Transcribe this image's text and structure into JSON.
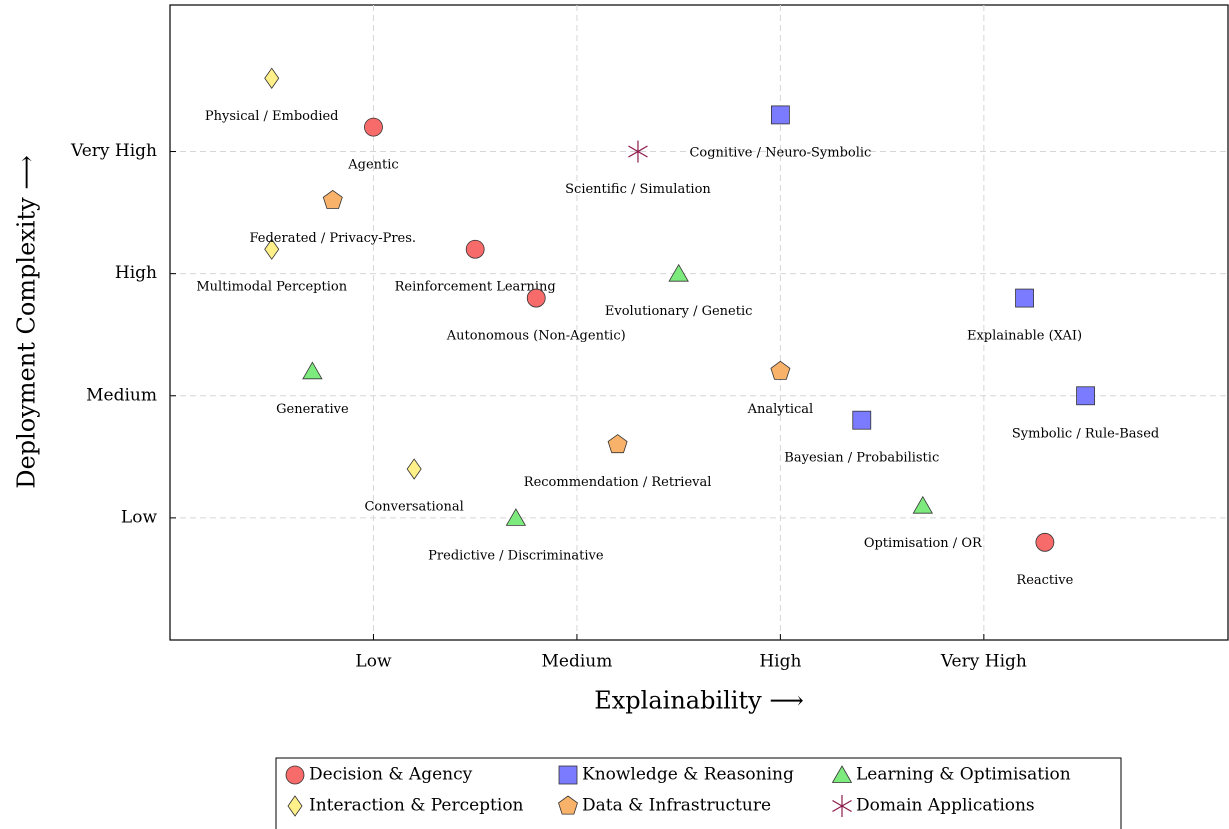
{
  "chart_data": {
    "type": "scatter",
    "x_label": "Explainability ⟶",
    "y_label": "Deployment Complexity ⟶",
    "xlim": [
      0,
      5.2
    ],
    "ylim": [
      0,
      5.2
    ],
    "xticks": [
      {
        "value": 1,
        "label": "Low"
      },
      {
        "value": 2,
        "label": "Medium"
      },
      {
        "value": 3,
        "label": "High"
      },
      {
        "value": 4,
        "label": "Very High"
      }
    ],
    "yticks": [
      {
        "value": 1,
        "label": "Low"
      },
      {
        "value": 2,
        "label": "Medium"
      },
      {
        "value": 3,
        "label": "High"
      },
      {
        "value": 4,
        "label": "Very High"
      }
    ],
    "grid": true,
    "legend": "bottom",
    "series": [
      {
        "name": "Decision & Agency",
        "color": "#f76b6b",
        "marker": "circle",
        "x": [
          1.0,
          1.5,
          1.8,
          4.3
        ],
        "y": [
          4.2,
          3.2,
          2.8,
          0.8
        ],
        "labels": [
          "Agentic",
          "Reinforcement Learning",
          "Autonomous (Non-Agentic)",
          "Reactive"
        ]
      },
      {
        "name": "Knowledge & Reasoning",
        "color": "#7b7bff",
        "marker": "square",
        "x": [
          3.0,
          4.2,
          4.5,
          3.4
        ],
        "y": [
          4.3,
          2.8,
          2.0,
          1.8
        ],
        "labels": [
          "Cognitive / Neuro-Symbolic",
          "Explainable (XAI)",
          "Symbolic / Rule-Based",
          "Bayesian / Probabilistic"
        ]
      },
      {
        "name": "Learning & Optimisation",
        "color": "#7dea7d",
        "marker": "triangle",
        "x": [
          2.5,
          0.7,
          1.7,
          3.7
        ],
        "y": [
          3.0,
          2.2,
          1.0,
          1.1
        ],
        "labels": [
          "Evolutionary / Genetic",
          "Generative",
          "Predictive / Discriminative",
          "Optimisation / OR"
        ]
      },
      {
        "name": "Interaction & Perception",
        "color": "#fff08a",
        "marker": "diamond",
        "x": [
          0.5,
          0.5,
          1.2
        ],
        "y": [
          4.6,
          3.2,
          1.4
        ],
        "labels": [
          "Physical / Embodied",
          "Multimodal Perception",
          "Conversational"
        ]
      },
      {
        "name": "Data & Infrastructure",
        "color": "#f9b26a",
        "marker": "pentagon",
        "x": [
          0.8,
          3.0,
          2.2
        ],
        "y": [
          3.6,
          2.2,
          1.6
        ],
        "labels": [
          "Federated / Privacy-Pres.",
          "Analytical",
          "Recommendation / Retrieval"
        ]
      },
      {
        "name": "Domain Applications",
        "color": "#8b1a4a",
        "marker": "star",
        "x": [
          2.3
        ],
        "y": [
          4.0
        ],
        "labels": [
          "Scientific / Simulation"
        ]
      }
    ]
  }
}
